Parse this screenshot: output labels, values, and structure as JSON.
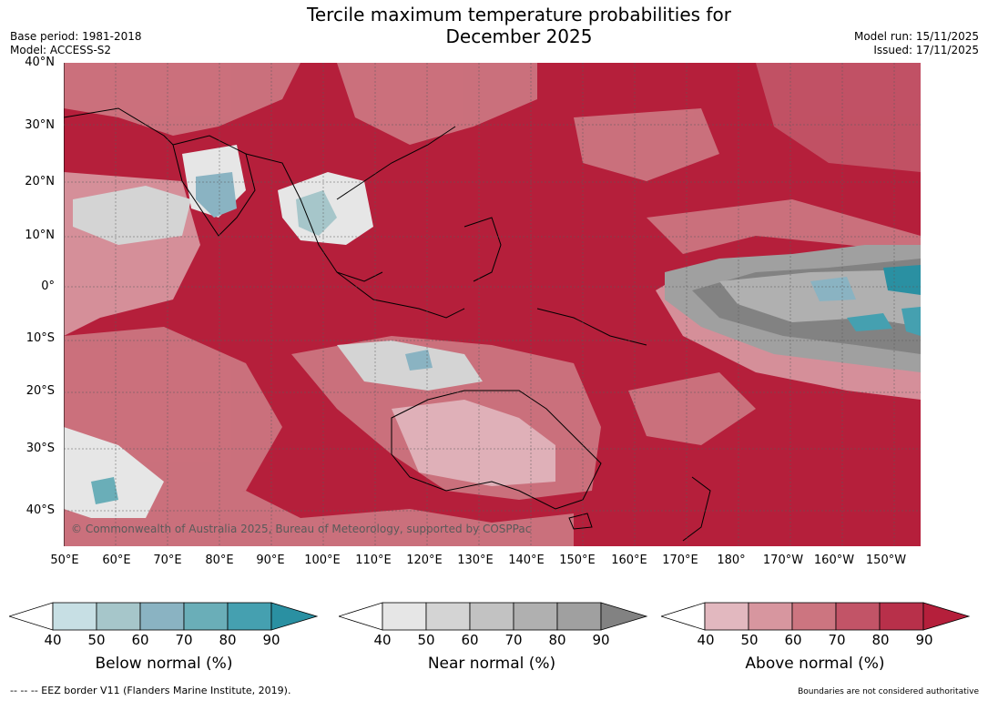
{
  "header": {
    "title_line1": "Tercile maximum temperature probabilities for",
    "title_line2": "December 2025",
    "base_period": "Base period: 1981-2018",
    "model": "Model: ACCESS-S2",
    "model_run": "Model run: 15/11/2025",
    "issued": "Issued: 17/11/2025"
  },
  "map": {
    "extent": {
      "lon_min": 50,
      "lon_max": 215,
      "lat_min": -46,
      "lat_max": 40
    },
    "lat_labels": [
      "40°N",
      "30°N",
      "20°N",
      "10°N",
      "0°",
      "10°S",
      "20°S",
      "30°S",
      "40°S"
    ],
    "lon_labels": [
      "50°E",
      "60°E",
      "70°E",
      "80°E",
      "90°E",
      "100°E",
      "110°E",
      "120°E",
      "130°E",
      "140°E",
      "150°E",
      "160°E",
      "170°E",
      "180°",
      "170°W",
      "160°W",
      "150°W"
    ],
    "copyright": "© Commonwealth of Australia 2025, Bureau of Meteorology, supported by COSPPac",
    "dominant_category": "Above normal"
  },
  "legends": [
    {
      "label": "Below normal (%)",
      "ticks": [
        "40",
        "50",
        "60",
        "70",
        "80",
        "90"
      ],
      "colors": [
        "#ffffff",
        "#c7dfe4",
        "#a6c6ca",
        "#8ab3c2",
        "#6aaeb8",
        "#45a0b0",
        "#2a90a2"
      ]
    },
    {
      "label": "Near normal (%)",
      "ticks": [
        "40",
        "50",
        "60",
        "70",
        "80",
        "90"
      ],
      "colors": [
        "#ffffff",
        "#e6e6e6",
        "#d4d4d4",
        "#c2c2c2",
        "#b0b0b0",
        "#a0a0a0",
        "#828282"
      ]
    },
    {
      "label": "Above normal (%)",
      "ticks": [
        "40",
        "50",
        "60",
        "70",
        "80",
        "90"
      ],
      "colors": [
        "#ffffff",
        "#e2b8bf",
        "#d7969f",
        "#cc7580",
        "#c25467",
        "#b8304a",
        "#b51f3b"
      ]
    }
  ],
  "footer": {
    "eez_note": "--  --  -- EEZ border V11 (Flanders Marine Institute, 2019).",
    "boundaries_note": "Boundaries are not considered authoritative"
  }
}
